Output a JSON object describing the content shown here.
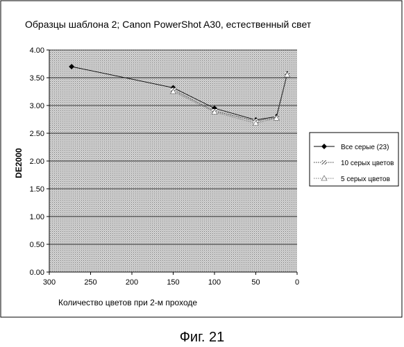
{
  "caption": "Фиг. 21",
  "chart_data": {
    "type": "line",
    "title": "Образцы шаблона 2; Canon PowerShot A30, естественный свет",
    "xlabel": "Количество цветов при 2-м проходе",
    "ylabel": "DE2000",
    "xlim": [
      300,
      0
    ],
    "x_reversed": true,
    "ylim": [
      0,
      4
    ],
    "x_ticks": [
      "300",
      "250",
      "200",
      "150",
      "100",
      "50",
      "0"
    ],
    "y_ticks": [
      "0.00",
      "0.50",
      "1.00",
      "1.50",
      "2.00",
      "2.50",
      "3.00",
      "3.50",
      "4.00"
    ],
    "grid": "horizontal",
    "plot_background": "stippled gray",
    "legend_position": "right",
    "series": [
      {
        "name": "Все серые (23)",
        "marker": "diamond",
        "line": "solid",
        "color": "#000000",
        "x": [
          273,
          150,
          100,
          50,
          25,
          12
        ],
        "y": [
          3.7,
          3.32,
          2.95,
          2.74,
          2.8,
          3.57
        ]
      },
      {
        "name": "10 серых цветов",
        "marker": "hatched",
        "line": "dotted",
        "color": "#333333",
        "x": [
          150,
          100,
          50,
          25,
          12
        ],
        "y": [
          3.28,
          2.9,
          2.72,
          2.78,
          3.56
        ]
      },
      {
        "name": "5 серых цветов",
        "marker": "triangle",
        "line": "dotted",
        "color": "#777777",
        "x": [
          150,
          100,
          50,
          25,
          12
        ],
        "y": [
          3.25,
          2.88,
          2.68,
          2.77,
          3.55
        ]
      }
    ]
  }
}
